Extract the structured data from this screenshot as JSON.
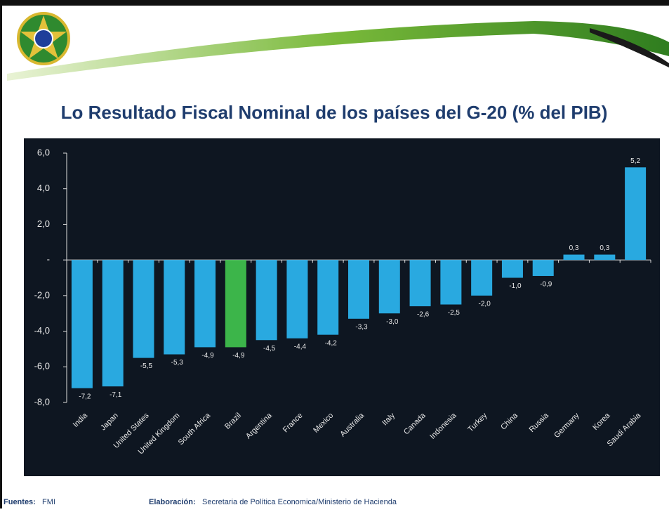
{
  "chart_data": {
    "type": "bar",
    "title": "Lo Resultado Fiscal Nominal de los países del G-20 (% del PIB)",
    "categories": [
      "India",
      "Japan",
      "United States",
      "United Kingdom",
      "South Africa",
      "Brazil",
      "Argentina",
      "France",
      "Mexico",
      "Australia",
      "Italy",
      "Canada",
      "Indonesia",
      "Turkey",
      "China",
      "Russia",
      "Germany",
      "Korea",
      "Saudi Arabia"
    ],
    "values": [
      -7.2,
      -7.1,
      -5.5,
      -5.3,
      -4.9,
      -4.9,
      -4.5,
      -4.4,
      -4.2,
      -3.3,
      -3.0,
      -2.6,
      -2.5,
      -2.0,
      -1.0,
      -0.9,
      0.3,
      0.3,
      5.2
    ],
    "value_labels": [
      "-7,2",
      "-7,1",
      "-5,5",
      "-5,3",
      "-4,9",
      "-4,9",
      "-4,5",
      "-4,4",
      "-4,2",
      "-3,3",
      "-3,0",
      "-2,6",
      "-2,5",
      "-2,0",
      "-1,0",
      "-0,9",
      "0,3",
      "0,3",
      "5,2"
    ],
    "colors": [
      "#29a9e0",
      "#29a9e0",
      "#29a9e0",
      "#29a9e0",
      "#29a9e0",
      "#3cb54a",
      "#29a9e0",
      "#29a9e0",
      "#29a9e0",
      "#29a9e0",
      "#29a9e0",
      "#29a9e0",
      "#29a9e0",
      "#29a9e0",
      "#29a9e0",
      "#29a9e0",
      "#29a9e0",
      "#29a9e0",
      "#29a9e0"
    ],
    "ylim": [
      -8,
      6
    ],
    "yticks": [
      {
        "value": 6,
        "label": "6,0"
      },
      {
        "value": 4,
        "label": "4,0"
      },
      {
        "value": 2,
        "label": "2,0"
      },
      {
        "value": 0,
        "label": "-"
      },
      {
        "value": -2,
        "label": "-2,0"
      },
      {
        "value": -4,
        "label": "-4,0"
      },
      {
        "value": -6,
        "label": "-6,0"
      },
      {
        "value": -8,
        "label": "-8,0"
      }
    ],
    "grid": false
  },
  "footer": {
    "source_label": "Fuentes:",
    "source": "FMI",
    "credit_label": "Elaboración:",
    "credit": "Secretaria de Política Economica/Ministerio de Hacienda"
  }
}
